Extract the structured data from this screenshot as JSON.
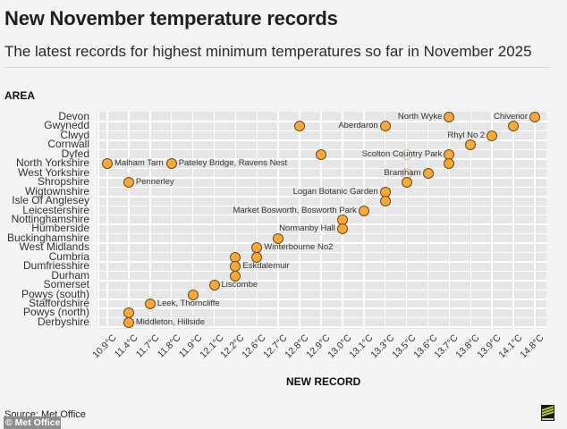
{
  "header": {
    "title": "New November temperature records",
    "subtitle": "The latest records for highest minimum temperatures so far in November 2025"
  },
  "footer": {
    "source": "Source: Met Office",
    "credit": "© Met Office",
    "logo": "met-office-logo"
  },
  "colors": {
    "background": "#f4f4f4",
    "plot_background": "#e6e6e6",
    "gridline": "#ffffff",
    "dot_fill": "#f5a93c",
    "dot_stroke": "#6b4a16"
  },
  "chart_data": {
    "type": "scatter",
    "title": "New November temperature records",
    "subtitle": "The latest records for highest minimum temperatures so far in November 2025",
    "xlabel": "NEW RECORD",
    "ylabel": "AREA",
    "grid": true,
    "legend": null,
    "x_categories": [
      "10.9°C",
      "11.4°C",
      "11.7°C",
      "11.8°C",
      "11.9°C",
      "12.1°C",
      "12.2°C",
      "12.6°C",
      "12.7°C",
      "12.8°C",
      "12.9°C",
      "13.0°C",
      "13.1°C",
      "13.3°C",
      "13.5°C",
      "13.6°C",
      "13.7°C",
      "13.8°C",
      "13.9°C",
      "14.1°C",
      "14.8°C"
    ],
    "y_categories": [
      "Devon",
      "Gwynedd",
      "Clwyd",
      "Cornwall",
      "Dyfed",
      "North Yorkshire",
      "West Yorkshire",
      "Shropshire",
      "Wigtownshire",
      "Isle Of Anglesey",
      "Leicestershire",
      "Nottinghamshire",
      "Humberside",
      "Buckinghamshire",
      "West Midlands",
      "Cumbria",
      "Dumfriesshire",
      "Durham",
      "Somerset",
      "Powys (south)",
      "Staffordshire",
      "Powys (north)",
      "Derbyshire"
    ],
    "points": [
      {
        "area": "Devon",
        "value": 13.7,
        "label": "North Wyke",
        "label_side": "left"
      },
      {
        "area": "Devon",
        "value": 14.8,
        "label": "Chivenor",
        "label_side": "left"
      },
      {
        "area": "Gwynedd",
        "value": 12.8,
        "label": ""
      },
      {
        "area": "Gwynedd",
        "value": 13.3,
        "label": "Aberdaron",
        "label_side": "left"
      },
      {
        "area": "Gwynedd",
        "value": 14.1,
        "label": ""
      },
      {
        "area": "Clwyd",
        "value": 13.9,
        "label": "Rhyl No 2",
        "label_side": "left"
      },
      {
        "area": "Cornwall",
        "value": 13.8,
        "label": ""
      },
      {
        "area": "Dyfed",
        "value": 12.9,
        "label": ""
      },
      {
        "area": "Dyfed",
        "value": 13.5,
        "label": "",
        "faint": true
      },
      {
        "area": "Dyfed",
        "value": 13.7,
        "label": "Scolton Country Park",
        "label_side": "left"
      },
      {
        "area": "North Yorkshire",
        "value": 10.9,
        "label": "Malham Tarn",
        "label_side": "right"
      },
      {
        "area": "North Yorkshire",
        "value": 11.8,
        "label": "Pateley Bridge, Ravens Nest",
        "label_side": "right"
      },
      {
        "area": "North Yorkshire",
        "value": 13.7,
        "label": ""
      },
      {
        "area": "West Yorkshire",
        "value": 13.5,
        "label": "",
        "faint": true
      },
      {
        "area": "West Yorkshire",
        "value": 13.6,
        "label": "Bramham",
        "label_side": "left"
      },
      {
        "area": "Shropshire",
        "value": 11.4,
        "label": "Pennerley",
        "label_side": "right"
      },
      {
        "area": "Shropshire",
        "value": 13.5,
        "label": ""
      },
      {
        "area": "Wigtownshire",
        "value": 13.3,
        "label": "Logan Botanic Garden",
        "label_side": "left"
      },
      {
        "area": "Isle Of Anglesey",
        "value": 13.3,
        "label": ""
      },
      {
        "area": "Leicestershire",
        "value": 13.1,
        "label": "Market Bosworth, Bosworth Park",
        "label_side": "left"
      },
      {
        "area": "Nottinghamshire",
        "value": 13.0,
        "label": ""
      },
      {
        "area": "Humberside",
        "value": 13.0,
        "label": "Normanby Hall",
        "label_side": "left"
      },
      {
        "area": "Buckinghamshire",
        "value": 12.7,
        "label": ""
      },
      {
        "area": "West Midlands",
        "value": 12.6,
        "label": "Winterbourne No2",
        "label_side": "right"
      },
      {
        "area": "Cumbria",
        "value": 12.2,
        "label": ""
      },
      {
        "area": "Cumbria",
        "value": 12.6,
        "label": ""
      },
      {
        "area": "Dumfriesshire",
        "value": 12.2,
        "label": "Eskdalemuir",
        "label_side": "right"
      },
      {
        "area": "Durham",
        "value": 12.2,
        "label": ""
      },
      {
        "area": "Somerset",
        "value": 12.1,
        "label": "Liscombe",
        "label_side": "right"
      },
      {
        "area": "Powys (south)",
        "value": 11.9,
        "label": ""
      },
      {
        "area": "Staffordshire",
        "value": 11.7,
        "label": "Leek, Thorncliffe",
        "label_side": "right"
      },
      {
        "area": "Powys (north)",
        "value": 11.4,
        "label": ""
      },
      {
        "area": "Derbyshire",
        "value": 11.4,
        "label": "Middleton, Hillside",
        "label_side": "right"
      }
    ]
  }
}
